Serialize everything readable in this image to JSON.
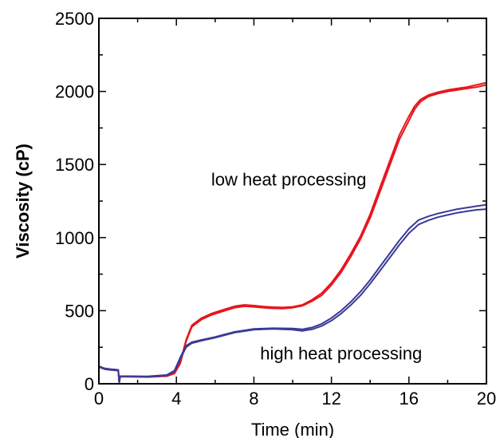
{
  "chart_data": {
    "type": "line",
    "title": "",
    "xlabel": "Time (min)",
    "ylabel": "Viscosity (cP)",
    "xlim": [
      0,
      20
    ],
    "ylim": [
      0,
      2500
    ],
    "xticks": [
      0,
      4,
      8,
      12,
      16,
      20
    ],
    "yticks": [
      0,
      500,
      1000,
      1500,
      2000,
      2500
    ],
    "grid": false,
    "annotations": [
      {
        "text": "low heat processing",
        "x": 9.8,
        "y": 1400
      },
      {
        "text": "high heat processing",
        "x": 12.5,
        "y": 210
      }
    ],
    "series": [
      {
        "color": "#e8141c",
        "x": [
          0,
          0.3,
          0.6,
          1.0,
          1.05,
          1.1,
          1.5,
          2.5,
          3.5,
          3.9,
          4.2,
          4.5,
          4.8,
          5.3,
          5.8,
          6.5,
          7.0,
          7.5,
          8.0,
          8.5,
          9.0,
          9.5,
          10.0,
          10.5,
          11.0,
          11.5,
          12.0,
          12.5,
          13.0,
          13.5,
          14.0,
          14.5,
          15.0,
          15.5,
          16.0,
          16.3,
          16.6,
          17.0,
          17.5,
          18.0,
          18.5,
          19.0,
          19.5,
          20.0
        ],
        "y": [
          120,
          105,
          100,
          95,
          10,
          50,
          50,
          48,
          55,
          75,
          150,
          300,
          400,
          450,
          480,
          510,
          530,
          540,
          535,
          528,
          524,
          522,
          526,
          540,
          575,
          620,
          690,
          780,
          890,
          1010,
          1160,
          1340,
          1520,
          1700,
          1830,
          1900,
          1945,
          1975,
          1995,
          2010,
          2020,
          2030,
          2045,
          2060
        ]
      },
      {
        "color": "#e8141c",
        "x": [
          0,
          0.3,
          0.6,
          1.0,
          1.05,
          1.1,
          1.5,
          2.5,
          3.5,
          3.9,
          4.2,
          4.5,
          4.8,
          5.3,
          5.8,
          6.5,
          7.0,
          7.5,
          8.0,
          8.5,
          9.0,
          9.5,
          10.0,
          10.5,
          11.0,
          11.5,
          12.0,
          12.5,
          13.0,
          13.5,
          14.0,
          14.5,
          15.0,
          15.5,
          16.0,
          16.3,
          16.6,
          17.0,
          17.5,
          18.0,
          18.5,
          19.0,
          19.5,
          20.0
        ],
        "y": [
          115,
          100,
          95,
          90,
          10,
          48,
          48,
          46,
          52,
          70,
          140,
          290,
          390,
          440,
          470,
          500,
          520,
          530,
          526,
          520,
          516,
          515,
          520,
          533,
          565,
          605,
          675,
          762,
          870,
          990,
          1135,
          1310,
          1490,
          1670,
          1800,
          1880,
          1930,
          1965,
          1985,
          2000,
          2010,
          2020,
          2030,
          2045
        ]
      },
      {
        "color": "#3a3a96",
        "x": [
          0,
          0.3,
          0.6,
          1.0,
          1.05,
          1.1,
          1.5,
          2.5,
          3.5,
          3.9,
          4.2,
          4.5,
          4.8,
          5.3,
          6.0,
          7.0,
          8.0,
          9.0,
          10.0,
          10.5,
          11.0,
          11.5,
          12.0,
          12.5,
          13.0,
          13.5,
          14.0,
          14.5,
          15.0,
          15.5,
          16.0,
          16.5,
          17.0,
          17.5,
          18.0,
          18.5,
          19.0,
          19.5,
          20.0
        ],
        "y": [
          120,
          105,
          100,
          95,
          10,
          52,
          52,
          50,
          60,
          90,
          180,
          260,
          285,
          300,
          320,
          355,
          375,
          380,
          378,
          372,
          385,
          410,
          450,
          500,
          560,
          630,
          710,
          800,
          890,
          980,
          1060,
          1120,
          1145,
          1165,
          1180,
          1195,
          1205,
          1215,
          1225
        ]
      },
      {
        "color": "#3a3a96",
        "x": [
          0,
          0.3,
          0.6,
          1.0,
          1.05,
          1.1,
          1.5,
          2.5,
          3.5,
          3.9,
          4.2,
          4.5,
          4.8,
          5.3,
          6.0,
          7.0,
          8.0,
          9.0,
          10.0,
          10.5,
          11.0,
          11.5,
          12.0,
          12.5,
          13.0,
          13.5,
          14.0,
          14.5,
          15.0,
          15.5,
          16.0,
          16.5,
          17.0,
          17.5,
          18.0,
          18.5,
          19.0,
          19.5,
          20.0
        ],
        "y": [
          115,
          100,
          95,
          90,
          10,
          50,
          50,
          48,
          57,
          85,
          170,
          250,
          278,
          295,
          315,
          350,
          370,
          375,
          370,
          362,
          372,
          395,
          432,
          480,
          538,
          605,
          685,
          772,
          860,
          950,
          1030,
          1090,
          1118,
          1140,
          1155,
          1170,
          1180,
          1190,
          1195
        ]
      }
    ]
  }
}
